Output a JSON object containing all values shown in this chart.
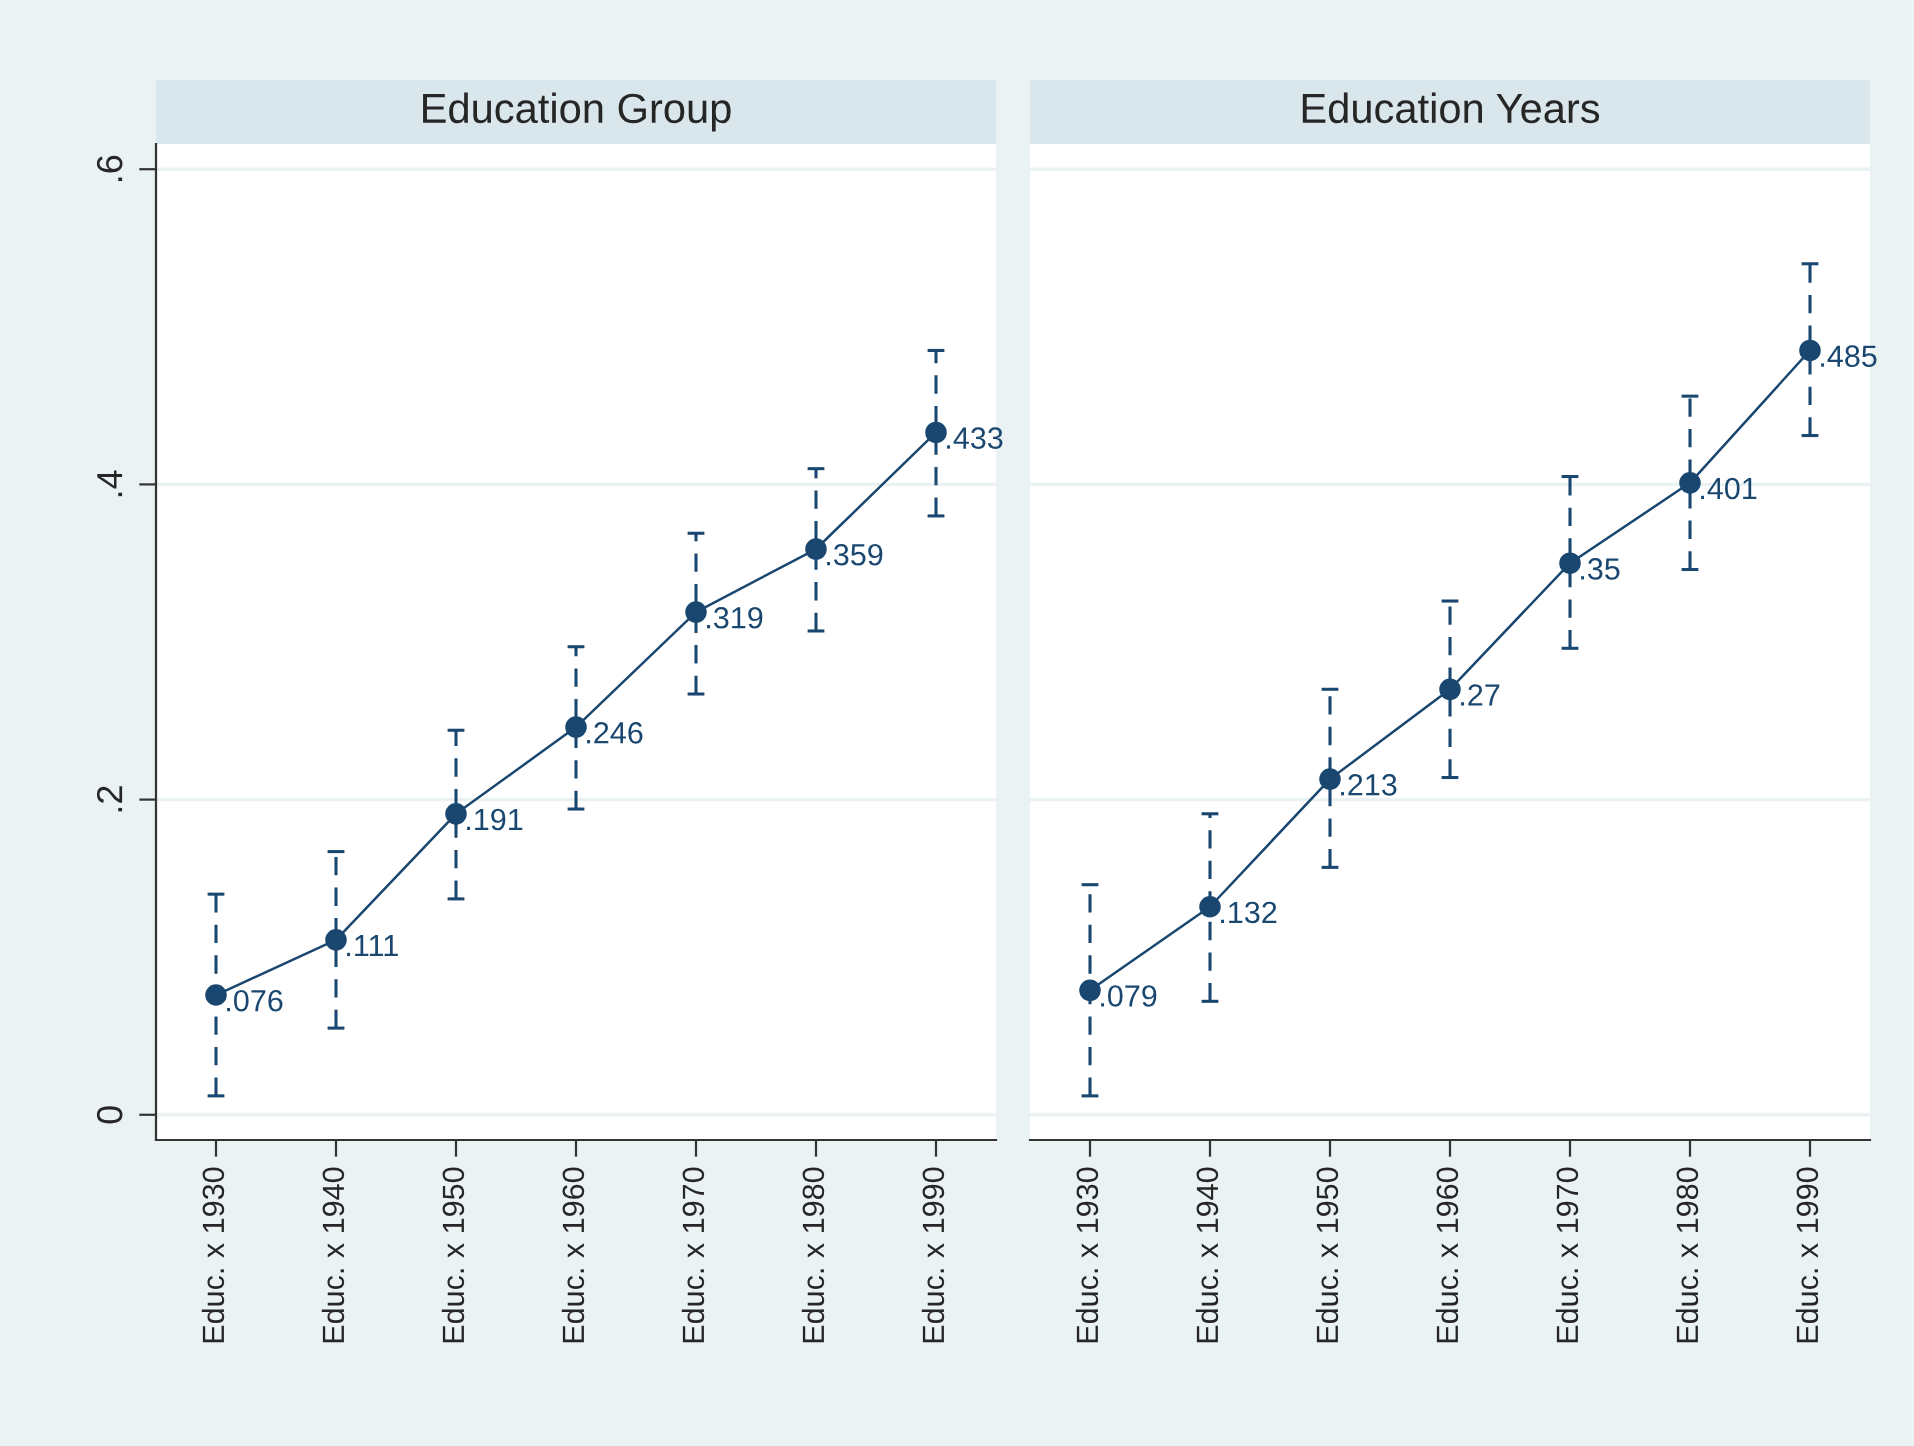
{
  "chart_data": [
    {
      "type": "line",
      "title": "Education Group",
      "categories": [
        "Educ. x 1930",
        "Educ. x 1940",
        "Educ. x 1950",
        "Educ. x 1960",
        "Educ. x 1970",
        "Educ. x 1980",
        "Educ. x 1990"
      ],
      "series": [
        {
          "color": "#1a476f",
          "values": [
            0.076,
            0.111,
            0.191,
            0.246,
            0.319,
            0.359,
            0.433
          ],
          "value_labels": [
            ".076",
            ".111",
            ".191",
            ".246",
            ".319",
            ".359",
            ".433"
          ],
          "errors": [
            [
              0.012,
              0.14
            ],
            [
              0.055,
              0.167
            ],
            [
              0.137,
              0.244
            ],
            [
              0.194,
              0.297
            ],
            [
              0.267,
              0.369
            ],
            [
              0.307,
              0.41
            ],
            [
              0.38,
              0.485
            ]
          ]
        }
      ],
      "ylim": [
        -0.016,
        0.616
      ],
      "yticks": [
        0,
        {
          "value": 0.2,
          "label": ".2"
        },
        {
          "value": 0.4,
          "label": ".4"
        },
        {
          "value": 0.6,
          "label": ".6"
        }
      ],
      "grid": "y",
      "marker": "circle",
      "line_style": "solid"
    },
    {
      "type": "line",
      "title": "Education Years",
      "categories": [
        "Educ. x 1930",
        "Educ. x 1940",
        "Educ. x 1950",
        "Educ. x 1960",
        "Educ. x 1970",
        "Educ. x 1980",
        "Educ. x 1990"
      ],
      "series": [
        {
          "color": "#1a476f",
          "values": [
            0.079,
            0.132,
            0.213,
            0.27,
            0.35,
            0.401,
            0.485
          ],
          "value_labels": [
            ".079",
            ".132",
            ".213",
            ".27",
            ".35",
            ".401",
            ".485"
          ],
          "errors": [
            [
              0.012,
              0.146
            ],
            [
              0.072,
              0.191
            ],
            [
              0.157,
              0.27
            ],
            [
              0.214,
              0.326
            ],
            [
              0.296,
              0.405
            ],
            [
              0.346,
              0.456
            ],
            [
              0.431,
              0.54
            ]
          ]
        }
      ],
      "ylim": [
        -0.016,
        0.616
      ],
      "yticks": [
        0,
        0.2,
        0.4,
        0.6
      ],
      "grid": "y",
      "marker": "circle",
      "line_style": "solid",
      "tick_labels": "x"
    }
  ]
}
